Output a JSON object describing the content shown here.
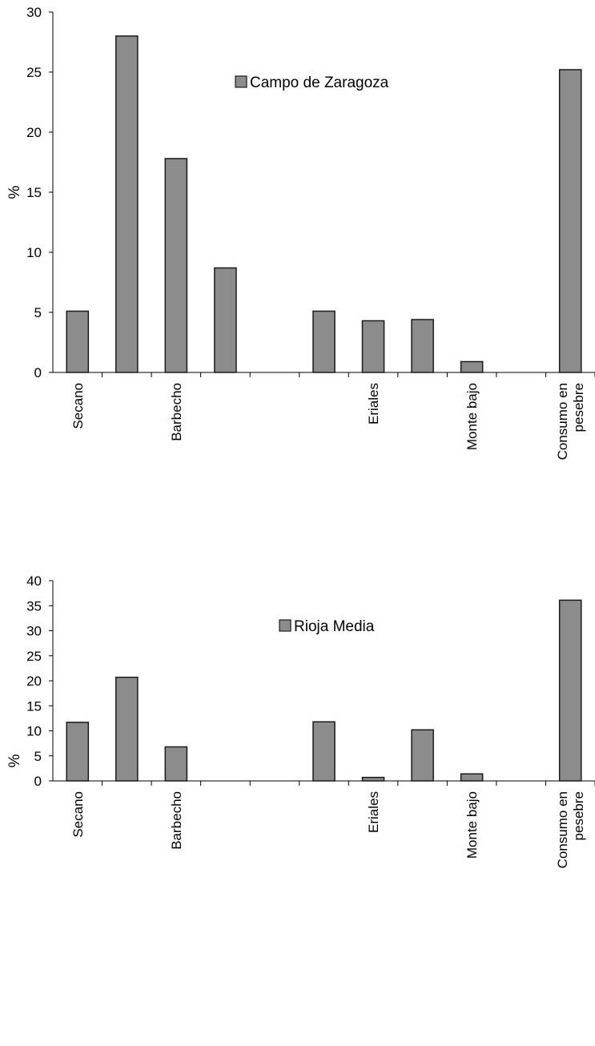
{
  "chart_data": [
    {
      "type": "bar",
      "legend": "Campo de Zaragoza",
      "ylabel": "%",
      "ylim": [
        0,
        30
      ],
      "yticks": [
        0,
        5,
        10,
        15,
        20,
        25,
        30
      ],
      "categories": [
        "Secano",
        "",
        "Barbecho",
        "",
        "",
        "",
        "Eriales",
        "",
        "Monte bajo",
        "",
        "Consumo en pesebre"
      ],
      "series": [
        {
          "name": "Campo de Zaragoza",
          "values": [
            5.1,
            28.0,
            17.8,
            8.7,
            0,
            5.1,
            4.3,
            4.4,
            0.9,
            0,
            25.2
          ]
        }
      ],
      "colors": {
        "bar": "#8c8c8c",
        "bar_stroke": "#1a1a1a"
      },
      "legend_position": "top-center"
    },
    {
      "type": "bar",
      "legend": "Rioja Media",
      "ylabel": "%",
      "ylim": [
        0,
        40
      ],
      "yticks": [
        0,
        5,
        10,
        15,
        20,
        25,
        30,
        35,
        40
      ],
      "categories": [
        "Secano",
        "",
        "Barbecho",
        "",
        "",
        "",
        "Eriales",
        "",
        "Monte bajo",
        "",
        "Consumo en pesebre"
      ],
      "series": [
        {
          "name": "Rioja Media",
          "values": [
            11.7,
            20.7,
            6.8,
            0,
            0,
            11.8,
            0.7,
            10.2,
            1.4,
            0,
            36.1
          ]
        }
      ],
      "colors": {
        "bar": "#8c8c8c",
        "bar_stroke": "#1a1a1a"
      },
      "legend_position": "top-center"
    }
  ]
}
